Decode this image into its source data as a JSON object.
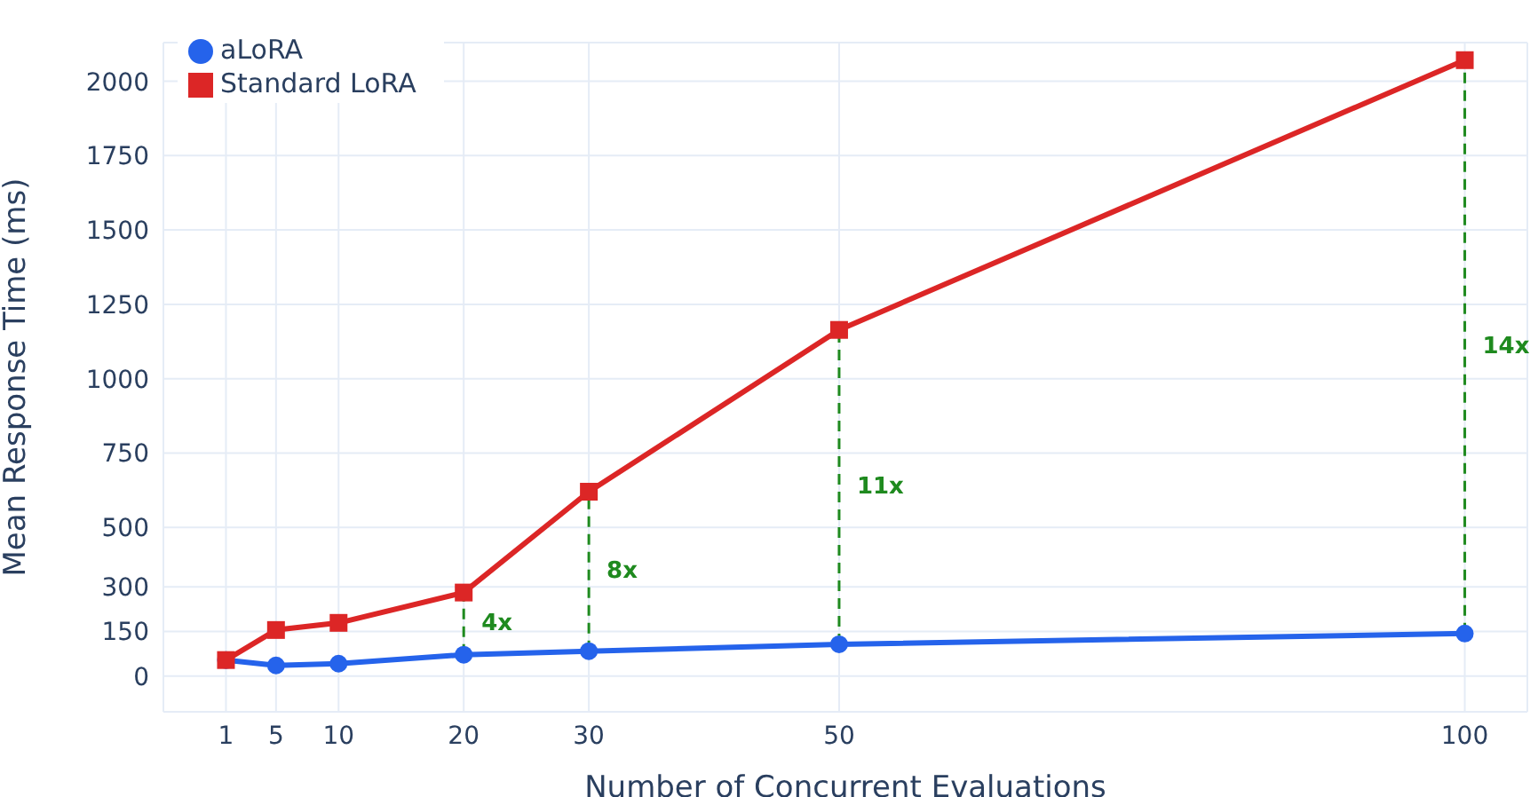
{
  "chart_data": {
    "type": "line",
    "xlabel": "Number of Concurrent Evaluations",
    "ylabel": "Mean Response Time (ms)",
    "x": [
      1,
      5,
      10,
      20,
      30,
      50,
      100
    ],
    "series": [
      {
        "name": "aLoRA",
        "color": "#2563eb",
        "marker": "circle",
        "values": [
          54,
          36,
          42,
          72,
          84,
          107,
          143
        ]
      },
      {
        "name": "Standard LoRA",
        "color": "#dc2626",
        "marker": "square",
        "values": [
          54,
          155,
          179,
          281,
          620,
          1164,
          2071
        ]
      }
    ],
    "xlim": [
      -4,
      105
    ],
    "xticks": [
      1,
      5,
      10,
      20,
      30,
      50,
      100
    ],
    "ylim": [
      -120,
      2130
    ],
    "yticks": [
      0,
      150,
      300,
      500,
      750,
      1000,
      1250,
      1500,
      1750,
      2000
    ],
    "grid": true,
    "legend": "top left",
    "line_style": "solid",
    "ref_lines": [
      {
        "axis": "x",
        "value": 20,
        "label": "4x",
        "color": "#1f8a1f",
        "line_style": "dashed"
      },
      {
        "axis": "x",
        "value": 30,
        "label": "8x",
        "color": "#1f8a1f",
        "line_style": "dashed"
      },
      {
        "axis": "x",
        "value": 50,
        "label": "11x",
        "color": "#1f8a1f",
        "line_style": "dashed"
      },
      {
        "axis": "x",
        "value": 100,
        "label": "14x",
        "color": "#1f8a1f",
        "line_style": "dashed"
      }
    ]
  }
}
